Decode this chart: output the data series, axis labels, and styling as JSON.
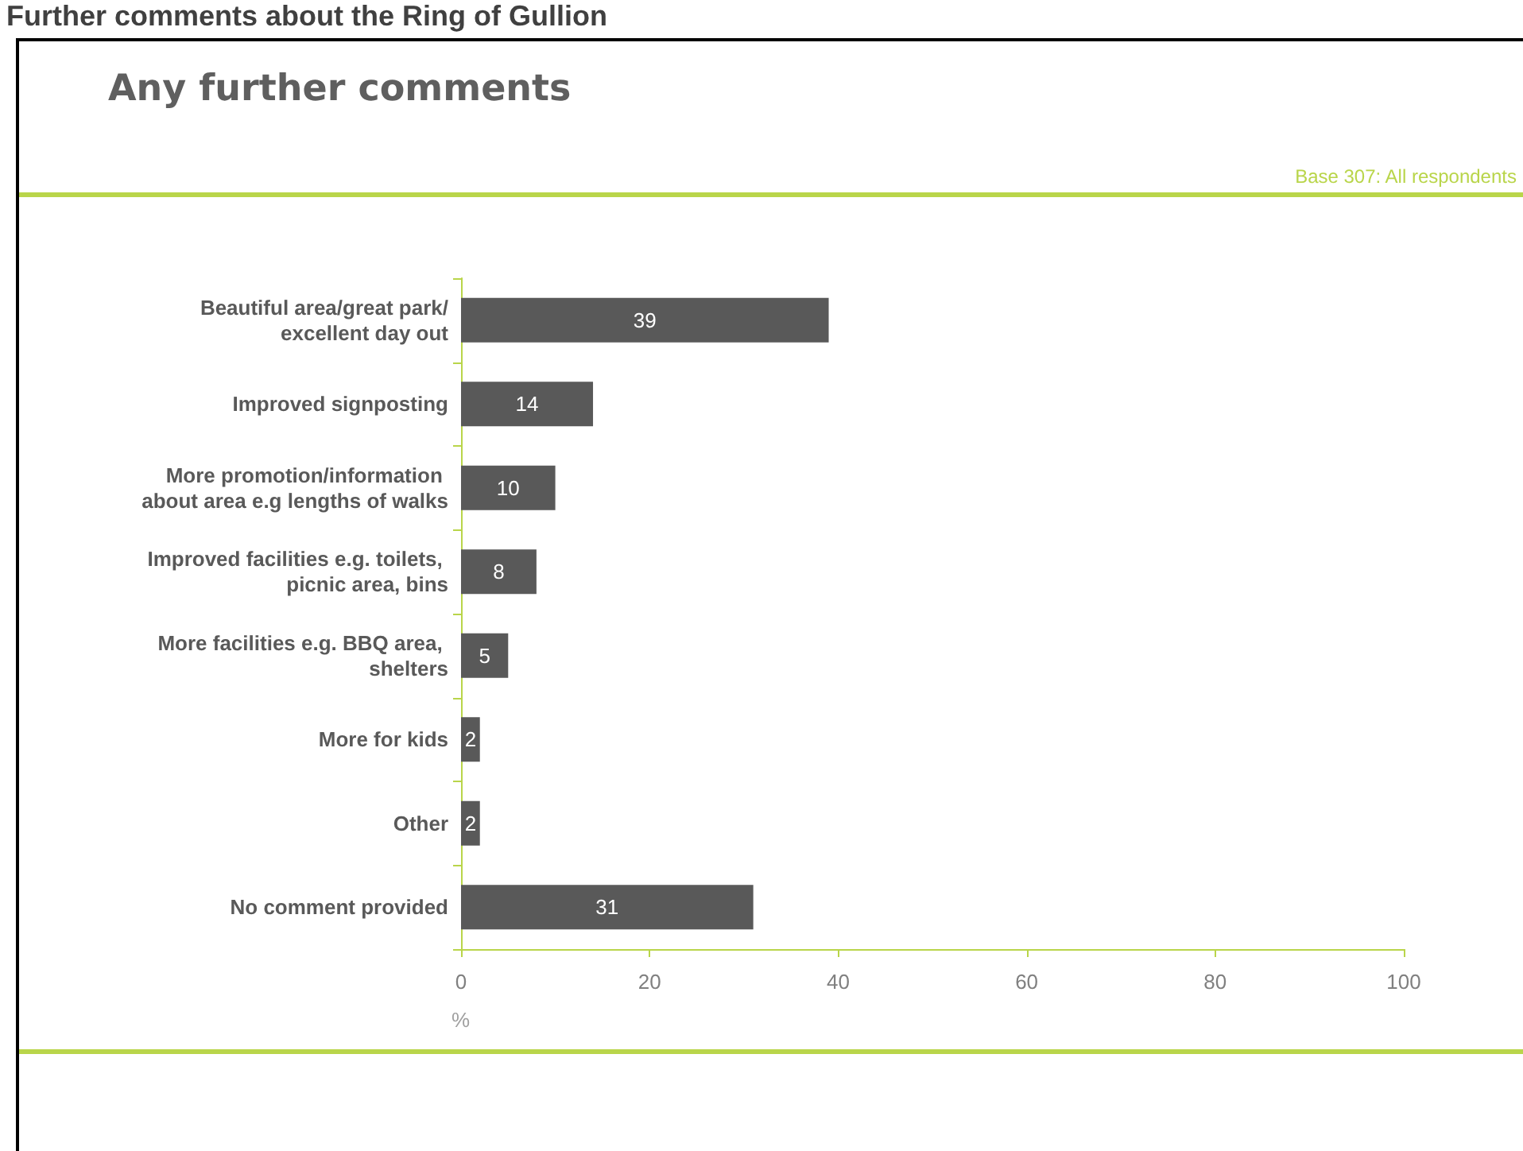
{
  "chart_data": {
    "type": "bar",
    "orientation": "horizontal",
    "title": "Any further comments",
    "annotations": [
      "Further comments about the Ring of Gullion",
      "Base 307: All respondents"
    ],
    "categories": [
      "Beautiful area/great park/excellent day out",
      "Improved signposting",
      "More promotion/information about area e.g lengths of walks",
      "Improved facilities e.g. toilets, picnic area, bins",
      "More facilities e.g. BBQ area, shelters",
      "More for kids",
      "Other",
      "No comment provided"
    ],
    "values": [
      39,
      14,
      10,
      8,
      5,
      2,
      2,
      31
    ],
    "color": "#595959",
    "xlabel": "%",
    "xlim": [
      0,
      100
    ],
    "xticks": [
      0,
      20,
      40,
      60,
      80,
      100
    ],
    "data_labels": true,
    "grid": false
  }
}
